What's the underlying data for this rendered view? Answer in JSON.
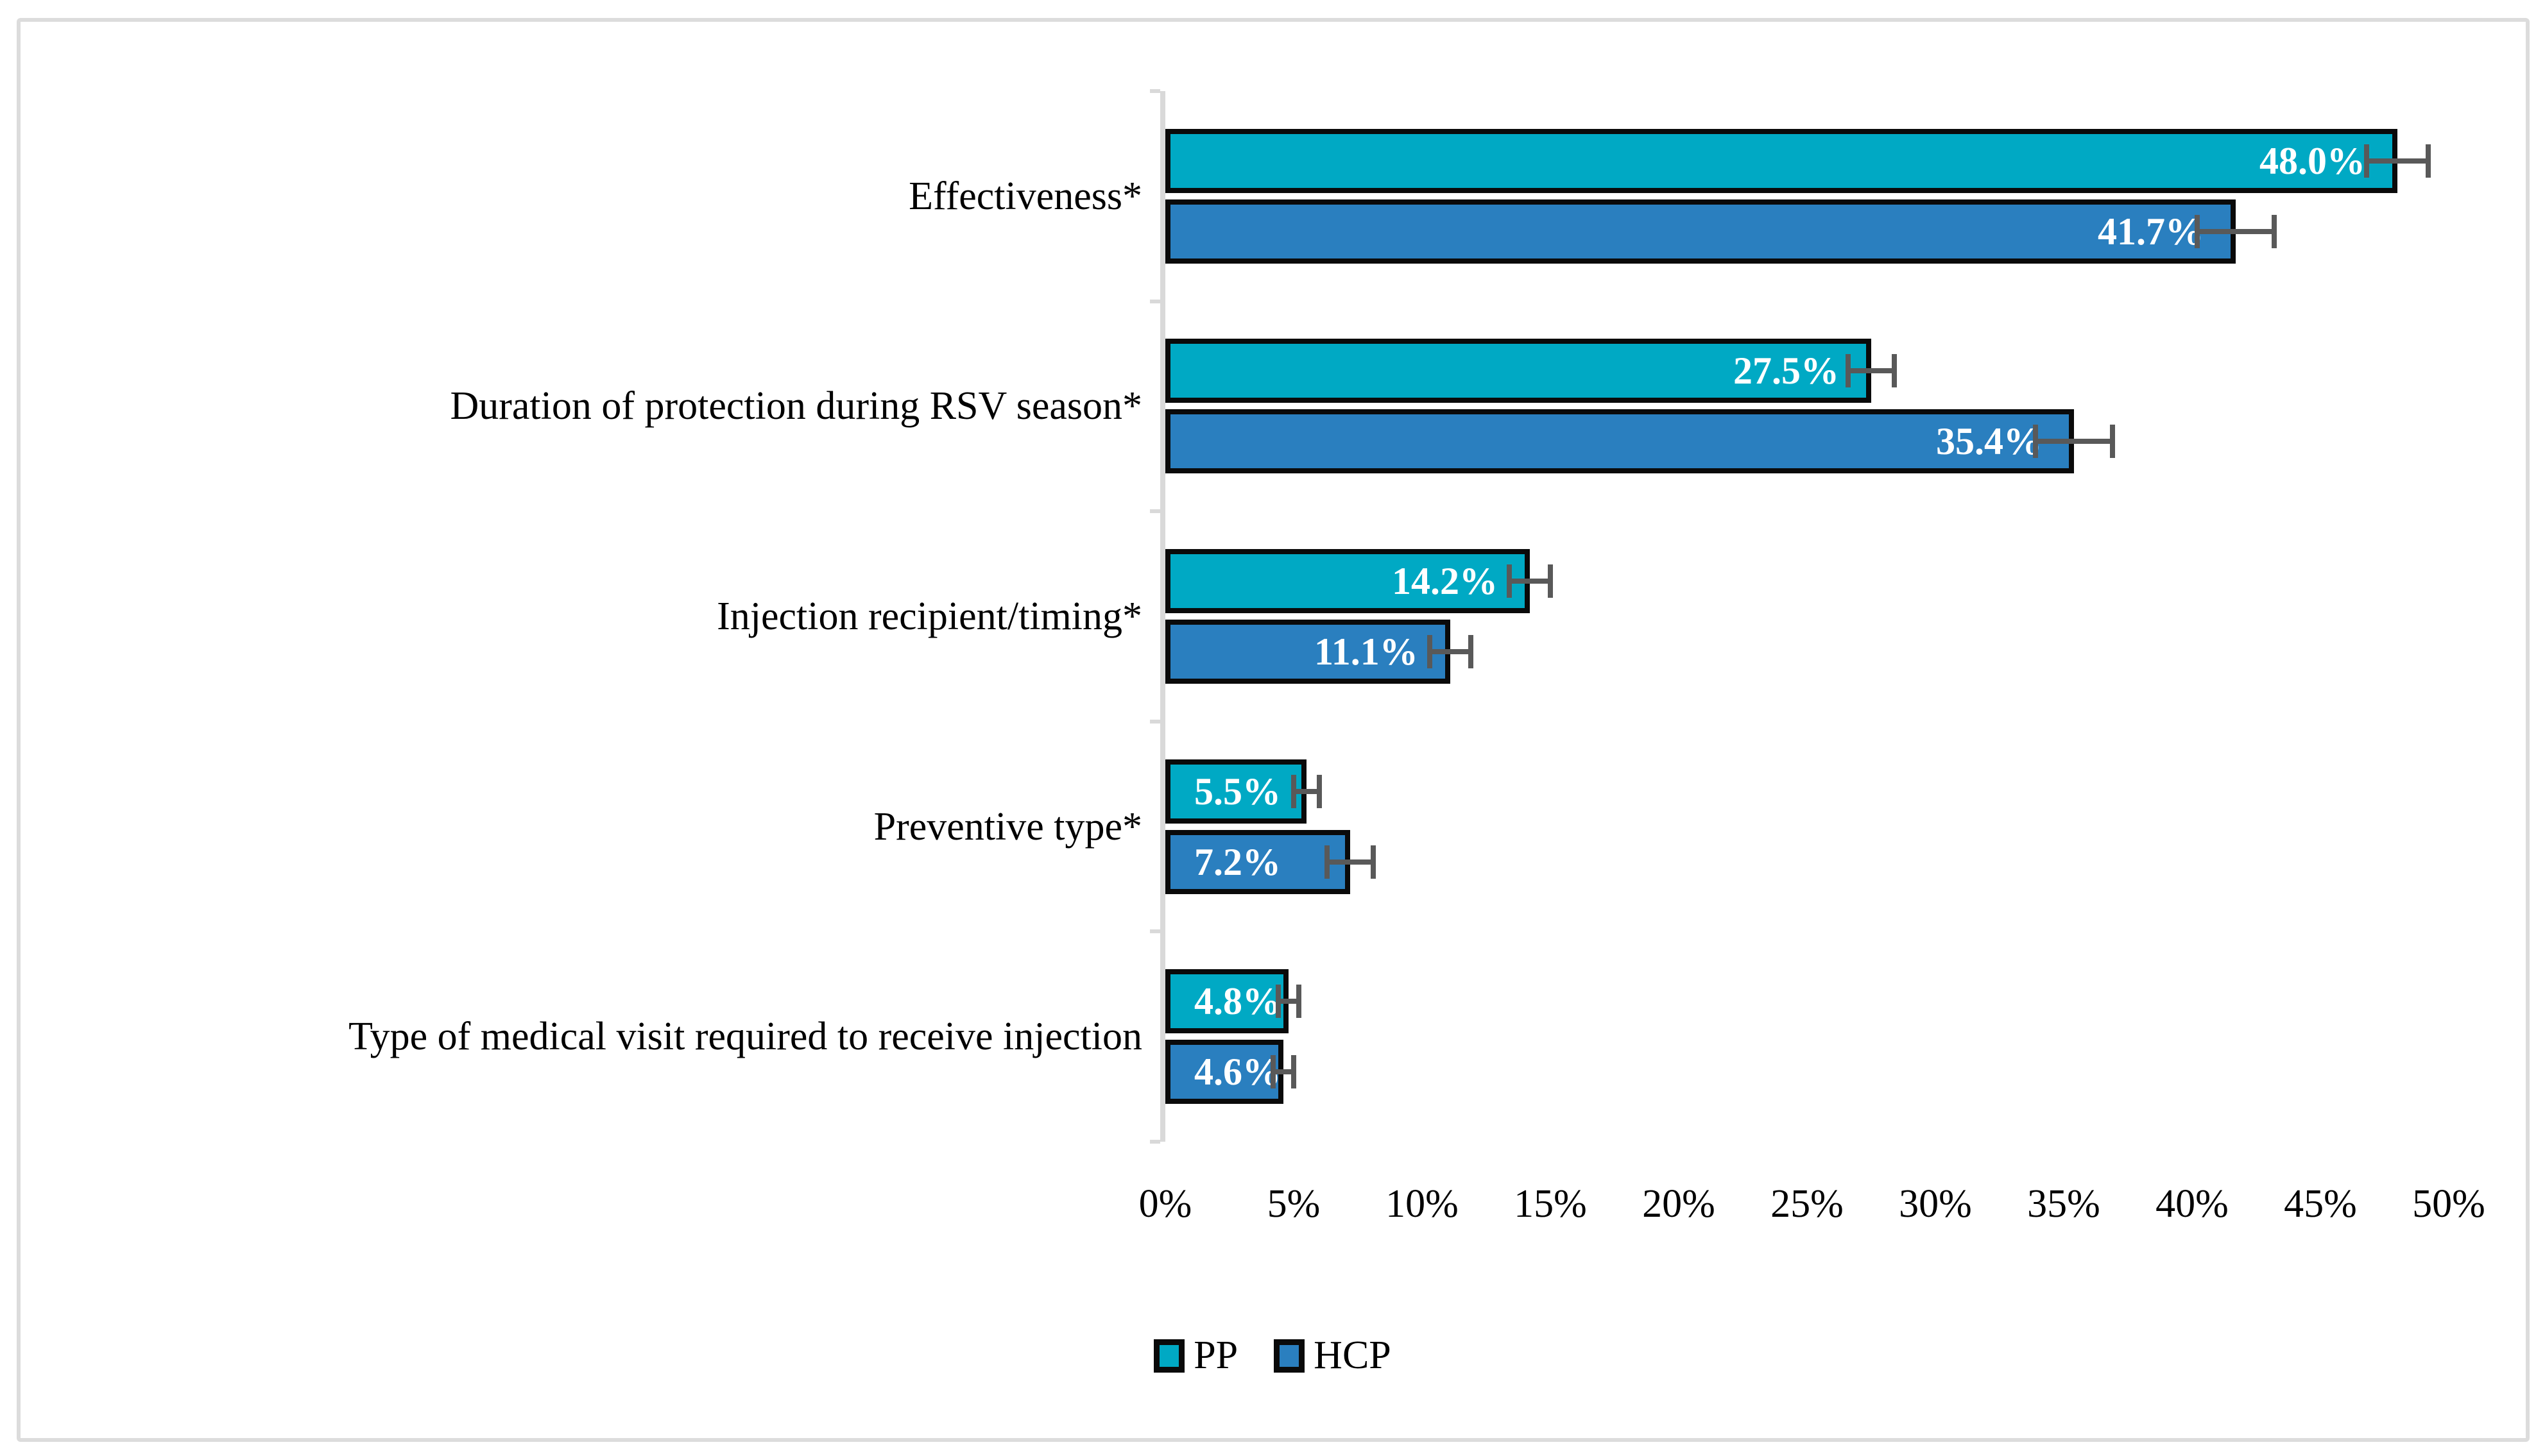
{
  "chart_data": {
    "type": "bar",
    "orientation": "horizontal",
    "title": "",
    "categories": [
      "Effectiveness*",
      "Duration of protection during RSV season*",
      "Injection recipient/timing*",
      "Preventive type*",
      "Type of medical visit required to receive injection"
    ],
    "series": [
      {
        "name": "PP",
        "color": "#00A9C4",
        "values": [
          48.0,
          27.5,
          14.2,
          5.5,
          4.8
        ],
        "labels": [
          "48.0%",
          "27.5%",
          "14.2%",
          "5.5%",
          "4.8%"
        ],
        "errors": [
          1.2,
          0.9,
          0.8,
          0.5,
          0.4
        ]
      },
      {
        "name": "HCP",
        "color": "#2A7FBF",
        "values": [
          41.7,
          35.4,
          11.1,
          7.2,
          4.6
        ],
        "labels": [
          "41.7%",
          "35.4%",
          "11.1%",
          "7.2%",
          "4.6%"
        ],
        "errors": [
          1.5,
          1.5,
          0.8,
          0.9,
          0.4
        ]
      }
    ],
    "x_axis": {
      "min": 0,
      "max": 50,
      "step": 5,
      "tick_labels": [
        "0%",
        "5%",
        "10%",
        "15%",
        "20%",
        "25%",
        "30%",
        "35%",
        "40%",
        "45%",
        "50%"
      ]
    },
    "legend": {
      "position": "bottom",
      "entries": [
        "PP",
        "HCP"
      ]
    },
    "error_bars": true,
    "gridlines": false,
    "colors": {
      "bar_border": "#0A0A0A",
      "error_bar": "#595959",
      "axis_line": "#D9D9D9",
      "data_label_text": "#FFFFFF",
      "axis_text": "#000000"
    }
  }
}
